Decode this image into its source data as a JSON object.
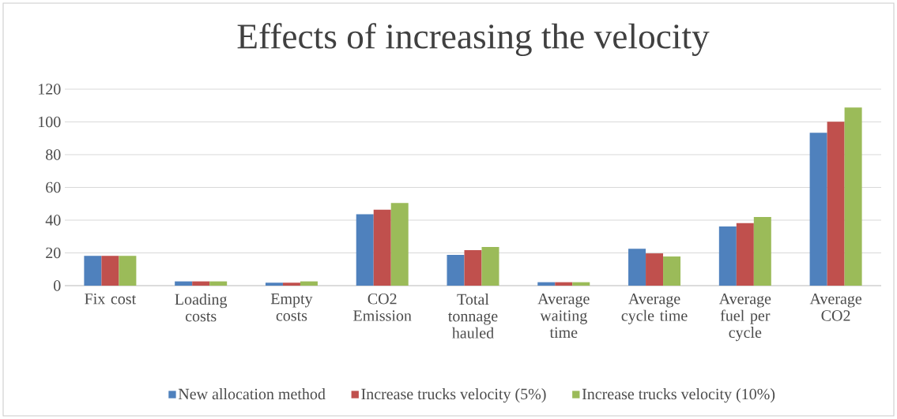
{
  "chart_data": {
    "type": "bar",
    "title": "Effects of increasing the velocity",
    "categories": [
      "Fix cost",
      "Loading costs",
      "Empty costs",
      "CO2 Emission",
      "Total tonnage hauled",
      "Average waiting time",
      "Average cycle time",
      "Average fuel per cycle",
      "Average CO2"
    ],
    "series": [
      {
        "name": "New allocation method",
        "color": "#4f81bd",
        "values": [
          18.2,
          2.6,
          1.8,
          43.6,
          18.8,
          2.1,
          22.5,
          36.2,
          93.4
        ]
      },
      {
        "name": "Increase trucks velocity (5%)",
        "color": "#c0504d",
        "values": [
          18.2,
          2.6,
          1.8,
          46.4,
          21.7,
          2.1,
          19.7,
          38.2,
          100.1
        ]
      },
      {
        "name": "Increase trucks velocity (10%)",
        "color": "#9bbb59",
        "values": [
          18.2,
          2.6,
          2.6,
          50.5,
          23.6,
          2.1,
          17.8,
          41.9,
          108.8
        ]
      }
    ],
    "ylim": [
      0,
      120
    ],
    "yticks": [
      0,
      20,
      40,
      60,
      80,
      100,
      120
    ],
    "grid": "y",
    "legend": "bottom"
  }
}
